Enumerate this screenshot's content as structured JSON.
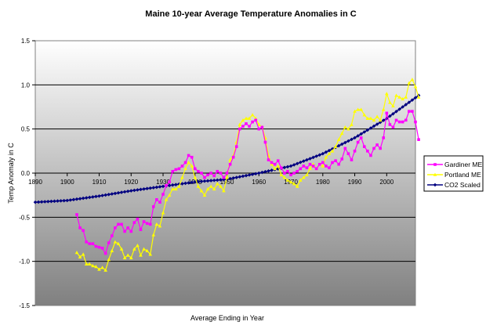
{
  "chart_data": {
    "type": "line",
    "title": "Maine 10-year Average Temperature Anomalies in C",
    "xlabel": "Average Ending in Year",
    "ylabel": "Temp Anomaly in C",
    "xlim": [
      1890,
      2009
    ],
    "ylim": [
      -1.5,
      1.5
    ],
    "x_ticks": [
      "1890",
      "1900",
      "1910",
      "1920",
      "1930",
      "1940",
      "1950",
      "1960",
      "1970",
      "1980",
      "1990",
      "2000"
    ],
    "y_ticks": [
      "1.5",
      "1.0",
      "0.5",
      "0.0",
      "-0.5",
      "-1.0",
      "-1.5"
    ],
    "grid": true,
    "legend_position": "right",
    "series": [
      {
        "name": "Gardiner ME",
        "color": "#ff00ff",
        "marker": "square",
        "points": [
          [
            1903,
            -0.47
          ],
          [
            1904,
            -0.62
          ],
          [
            1905,
            -0.65
          ],
          [
            1906,
            -0.78
          ],
          [
            1907,
            -0.8
          ],
          [
            1908,
            -0.8
          ],
          [
            1909,
            -0.83
          ],
          [
            1910,
            -0.84
          ],
          [
            1911,
            -0.85
          ],
          [
            1912,
            -0.91
          ],
          [
            1913,
            -0.79
          ],
          [
            1914,
            -0.71
          ],
          [
            1915,
            -0.62
          ],
          [
            1916,
            -0.58
          ],
          [
            1917,
            -0.58
          ],
          [
            1918,
            -0.66
          ],
          [
            1919,
            -0.62
          ],
          [
            1920,
            -0.66
          ],
          [
            1921,
            -0.56
          ],
          [
            1922,
            -0.52
          ],
          [
            1923,
            -0.64
          ],
          [
            1924,
            -0.55
          ],
          [
            1925,
            -0.57
          ],
          [
            1926,
            -0.58
          ],
          [
            1927,
            -0.38
          ],
          [
            1928,
            -0.3
          ],
          [
            1929,
            -0.33
          ],
          [
            1930,
            -0.24
          ],
          [
            1931,
            -0.14
          ],
          [
            1932,
            -0.1
          ],
          [
            1933,
            0.02
          ],
          [
            1934,
            0.04
          ],
          [
            1935,
            0.05
          ],
          [
            1936,
            0.08
          ],
          [
            1937,
            0.12
          ],
          [
            1938,
            0.2
          ],
          [
            1939,
            0.18
          ],
          [
            1940,
            0.05
          ],
          [
            1941,
            0.02
          ],
          [
            1942,
            0.0
          ],
          [
            1943,
            -0.05
          ],
          [
            1944,
            -0.02
          ],
          [
            1945,
            0.0
          ],
          [
            1946,
            -0.03
          ],
          [
            1947,
            0.02
          ],
          [
            1948,
            0.0
          ],
          [
            1949,
            -0.05
          ],
          [
            1950,
            0.0
          ],
          [
            1951,
            0.1
          ],
          [
            1952,
            0.18
          ],
          [
            1953,
            0.3
          ],
          [
            1954,
            0.5
          ],
          [
            1955,
            0.53
          ],
          [
            1956,
            0.56
          ],
          [
            1957,
            0.53
          ],
          [
            1958,
            0.58
          ],
          [
            1959,
            0.6
          ],
          [
            1960,
            0.5
          ],
          [
            1961,
            0.52
          ],
          [
            1962,
            0.35
          ],
          [
            1963,
            0.15
          ],
          [
            1964,
            0.12
          ],
          [
            1965,
            0.1
          ],
          [
            1966,
            0.14
          ],
          [
            1967,
            0.06
          ],
          [
            1968,
            0.0
          ],
          [
            1969,
            0.02
          ],
          [
            1970,
            -0.02
          ],
          [
            1971,
            0.0
          ],
          [
            1972,
            0.02
          ],
          [
            1973,
            0.05
          ],
          [
            1974,
            0.08
          ],
          [
            1975,
            0.06
          ],
          [
            1976,
            0.1
          ],
          [
            1977,
            0.08
          ],
          [
            1978,
            0.05
          ],
          [
            1979,
            0.1
          ],
          [
            1980,
            0.12
          ],
          [
            1981,
            0.08
          ],
          [
            1982,
            0.06
          ],
          [
            1983,
            0.12
          ],
          [
            1984,
            0.14
          ],
          [
            1985,
            0.1
          ],
          [
            1986,
            0.16
          ],
          [
            1987,
            0.28
          ],
          [
            1988,
            0.22
          ],
          [
            1989,
            0.15
          ],
          [
            1990,
            0.25
          ],
          [
            1991,
            0.35
          ],
          [
            1992,
            0.4
          ],
          [
            1993,
            0.3
          ],
          [
            1994,
            0.25
          ],
          [
            1995,
            0.2
          ],
          [
            1996,
            0.28
          ],
          [
            1997,
            0.32
          ],
          [
            1998,
            0.28
          ],
          [
            1999,
            0.4
          ],
          [
            2000,
            0.68
          ],
          [
            2001,
            0.55
          ],
          [
            2002,
            0.52
          ],
          [
            2003,
            0.6
          ],
          [
            2004,
            0.58
          ],
          [
            2005,
            0.58
          ],
          [
            2006,
            0.6
          ],
          [
            2007,
            0.7
          ],
          [
            2008,
            0.7
          ],
          [
            2009,
            0.58
          ],
          [
            2010,
            0.38
          ]
        ]
      },
      {
        "name": "Portland ME",
        "color": "#ffff00",
        "marker": "triangle",
        "points": [
          [
            1903,
            -0.9
          ],
          [
            1904,
            -0.95
          ],
          [
            1905,
            -0.92
          ],
          [
            1906,
            -1.03
          ],
          [
            1907,
            -1.03
          ],
          [
            1908,
            -1.05
          ],
          [
            1909,
            -1.06
          ],
          [
            1910,
            -1.09
          ],
          [
            1911,
            -1.07
          ],
          [
            1912,
            -1.1
          ],
          [
            1913,
            -0.98
          ],
          [
            1914,
            -0.88
          ],
          [
            1915,
            -0.78
          ],
          [
            1916,
            -0.8
          ],
          [
            1917,
            -0.86
          ],
          [
            1918,
            -0.96
          ],
          [
            1919,
            -0.93
          ],
          [
            1920,
            -0.96
          ],
          [
            1921,
            -0.86
          ],
          [
            1922,
            -0.82
          ],
          [
            1923,
            -0.93
          ],
          [
            1924,
            -0.86
          ],
          [
            1925,
            -0.88
          ],
          [
            1926,
            -0.92
          ],
          [
            1927,
            -0.7
          ],
          [
            1928,
            -0.58
          ],
          [
            1929,
            -0.6
          ],
          [
            1930,
            -0.45
          ],
          [
            1931,
            -0.3
          ],
          [
            1932,
            -0.25
          ],
          [
            1933,
            -0.18
          ],
          [
            1934,
            -0.18
          ],
          [
            1935,
            -0.15
          ],
          [
            1936,
            -0.05
          ],
          [
            1937,
            0.05
          ],
          [
            1938,
            0.12
          ],
          [
            1939,
            0.08
          ],
          [
            1940,
            -0.05
          ],
          [
            1941,
            -0.15
          ],
          [
            1942,
            -0.2
          ],
          [
            1943,
            -0.25
          ],
          [
            1944,
            -0.18
          ],
          [
            1945,
            -0.15
          ],
          [
            1946,
            -0.18
          ],
          [
            1947,
            -0.12
          ],
          [
            1948,
            -0.15
          ],
          [
            1949,
            -0.2
          ],
          [
            1950,
            -0.05
          ],
          [
            1951,
            0.15
          ],
          [
            1952,
            0.2
          ],
          [
            1953,
            0.35
          ],
          [
            1954,
            0.55
          ],
          [
            1955,
            0.6
          ],
          [
            1956,
            0.62
          ],
          [
            1957,
            0.62
          ],
          [
            1958,
            0.66
          ],
          [
            1959,
            0.62
          ],
          [
            1960,
            0.55
          ],
          [
            1961,
            0.52
          ],
          [
            1962,
            0.4
          ],
          [
            1963,
            0.2
          ],
          [
            1964,
            0.1
          ],
          [
            1965,
            0.05
          ],
          [
            1966,
            0.08
          ],
          [
            1967,
            -0.02
          ],
          [
            1968,
            -0.05
          ],
          [
            1969,
            -0.08
          ],
          [
            1970,
            -0.1
          ],
          [
            1971,
            -0.12
          ],
          [
            1972,
            -0.15
          ],
          [
            1973,
            -0.08
          ],
          [
            1974,
            -0.05
          ],
          [
            1975,
            -0.02
          ],
          [
            1976,
            0.05
          ],
          [
            1977,
            0.1
          ],
          [
            1978,
            0.05
          ],
          [
            1979,
            0.1
          ],
          [
            1980,
            0.08
          ],
          [
            1981,
            0.18
          ],
          [
            1982,
            0.22
          ],
          [
            1983,
            0.25
          ],
          [
            1984,
            0.3
          ],
          [
            1985,
            0.38
          ],
          [
            1986,
            0.45
          ],
          [
            1987,
            0.52
          ],
          [
            1988,
            0.5
          ],
          [
            1989,
            0.55
          ],
          [
            1990,
            0.7
          ],
          [
            1991,
            0.72
          ],
          [
            1992,
            0.72
          ],
          [
            1993,
            0.66
          ],
          [
            1994,
            0.62
          ],
          [
            1995,
            0.62
          ],
          [
            1996,
            0.6
          ],
          [
            1997,
            0.64
          ],
          [
            1998,
            0.6
          ],
          [
            1999,
            0.72
          ],
          [
            2000,
            0.9
          ],
          [
            2001,
            0.8
          ],
          [
            2002,
            0.76
          ],
          [
            2003,
            0.88
          ],
          [
            2004,
            0.86
          ],
          [
            2005,
            0.84
          ],
          [
            2006,
            0.86
          ],
          [
            2007,
            1.02
          ],
          [
            2008,
            1.06
          ],
          [
            2009,
            0.98
          ],
          [
            2010,
            0.86
          ]
        ]
      },
      {
        "name": "CO2 Scaled",
        "color": "#000080",
        "marker": "diamond",
        "x_start": 1890,
        "x_end": 2010,
        "anchors": [
          [
            1890,
            -0.33
          ],
          [
            1900,
            -0.31
          ],
          [
            1910,
            -0.26
          ],
          [
            1920,
            -0.2
          ],
          [
            1930,
            -0.15
          ],
          [
            1940,
            -0.1
          ],
          [
            1950,
            -0.07
          ],
          [
            1960,
            0.0
          ],
          [
            1970,
            0.08
          ],
          [
            1980,
            0.22
          ],
          [
            1990,
            0.4
          ],
          [
            2000,
            0.62
          ],
          [
            2010,
            0.88
          ]
        ]
      }
    ]
  }
}
